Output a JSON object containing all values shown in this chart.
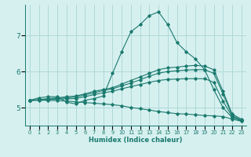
{
  "xlabel": "Humidex (Indice chaleur)",
  "background_color": "#d6f0f0",
  "grid_color": "#b0d8d8",
  "line_color": "#1a7a6e",
  "xlim": [
    -0.5,
    23.5
  ],
  "ylim": [
    4.5,
    7.85
  ],
  "yticks": [
    5,
    6,
    7
  ],
  "xticks": [
    0,
    1,
    2,
    3,
    4,
    5,
    6,
    7,
    8,
    9,
    10,
    11,
    12,
    13,
    14,
    15,
    16,
    17,
    18,
    19,
    20,
    21,
    22,
    23
  ],
  "series": [
    {
      "x": [
        0,
        1,
        2,
        3,
        4,
        5,
        6,
        7,
        8,
        9,
        10,
        11,
        12,
        13,
        14,
        15,
        16,
        17,
        18,
        19,
        20,
        21,
        22,
        23
      ],
      "y": [
        5.2,
        5.27,
        5.3,
        5.3,
        5.15,
        5.1,
        5.2,
        5.25,
        5.32,
        5.95,
        6.55,
        7.1,
        7.3,
        7.55,
        7.65,
        7.3,
        6.8,
        6.55,
        6.35,
        6.05,
        5.5,
        5.0,
        4.72,
        4.65
      ]
    },
    {
      "x": [
        0,
        1,
        2,
        3,
        4,
        5,
        6,
        7,
        8,
        9,
        10,
        11,
        12,
        13,
        14,
        15,
        16,
        17,
        18,
        19,
        20,
        21,
        22,
        23
      ],
      "y": [
        5.2,
        5.22,
        5.25,
        5.27,
        5.3,
        5.32,
        5.38,
        5.45,
        5.5,
        5.55,
        5.65,
        5.75,
        5.85,
        5.95,
        6.05,
        6.1,
        6.12,
        6.15,
        6.17,
        6.15,
        6.05,
        5.45,
        4.82,
        4.68
      ]
    },
    {
      "x": [
        0,
        1,
        2,
        3,
        4,
        5,
        6,
        7,
        8,
        9,
        10,
        11,
        12,
        13,
        14,
        15,
        16,
        17,
        18,
        19,
        20,
        21,
        22,
        23
      ],
      "y": [
        5.2,
        5.21,
        5.23,
        5.25,
        5.27,
        5.29,
        5.35,
        5.41,
        5.47,
        5.52,
        5.6,
        5.68,
        5.77,
        5.87,
        5.95,
        6.0,
        6.02,
        6.04,
        6.05,
        6.05,
        5.95,
        5.38,
        4.78,
        4.65
      ]
    },
    {
      "x": [
        0,
        1,
        2,
        3,
        4,
        5,
        6,
        7,
        8,
        9,
        10,
        11,
        12,
        13,
        14,
        15,
        16,
        17,
        18,
        19,
        20,
        21,
        22,
        23
      ],
      "y": [
        5.2,
        5.21,
        5.22,
        5.23,
        5.24,
        5.25,
        5.3,
        5.36,
        5.41,
        5.45,
        5.52,
        5.58,
        5.64,
        5.7,
        5.75,
        5.78,
        5.79,
        5.8,
        5.8,
        5.8,
        5.7,
        5.18,
        4.75,
        4.62
      ]
    },
    {
      "x": [
        0,
        1,
        2,
        3,
        4,
        5,
        6,
        7,
        8,
        9,
        10,
        11,
        12,
        13,
        14,
        15,
        16,
        17,
        18,
        19,
        20,
        21,
        22,
        23
      ],
      "y": [
        5.2,
        5.2,
        5.2,
        5.19,
        5.18,
        5.16,
        5.14,
        5.12,
        5.1,
        5.08,
        5.05,
        5.0,
        4.97,
        4.93,
        4.89,
        4.86,
        4.83,
        4.82,
        4.8,
        4.78,
        4.77,
        4.75,
        4.68,
        4.62
      ]
    }
  ]
}
